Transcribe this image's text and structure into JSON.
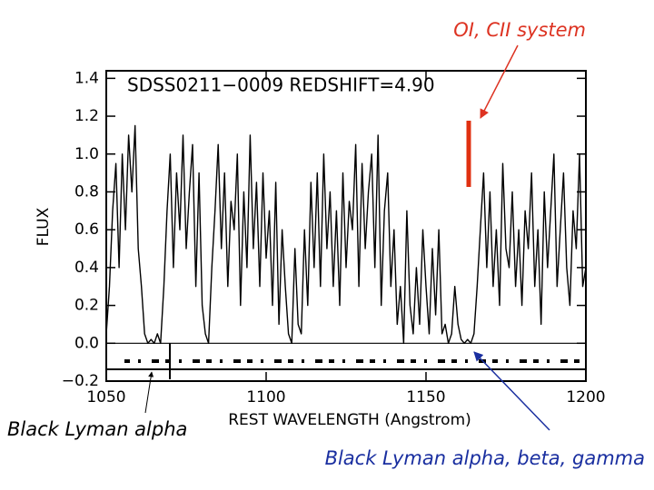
{
  "chart_data": {
    "type": "line",
    "title": "SDSS0211−0009  REDSHIFT=4.90",
    "x_label": "REST WAVELENGTH (Angstrom)",
    "y_label": "FLUX",
    "annotations": [
      "OI, CII system",
      "Black Lyman alpha",
      "Black Lyman alpha, beta, gamma"
    ],
    "xlim": [
      1050,
      1200
    ],
    "ylim": [
      -0.2,
      1.44
    ],
    "xticks": [
      1050,
      1100,
      1150,
      1200
    ],
    "yticks": [
      {
        "value": -0.2,
        "label": "−0.2"
      },
      {
        "value": 0,
        "label": "0.0"
      },
      0.2,
      0.4,
      0.6,
      0.8,
      {
        "value": 1,
        "label": "1.0"
      },
      1.2,
      1.4
    ],
    "reference_lines": [
      0
    ],
    "series": [
      {
        "color": "#000000",
        "x": [
          1050,
          1051,
          1052,
          1053,
          1054,
          1055,
          1056,
          1057,
          1058,
          1059,
          1060,
          1061,
          1062,
          1063,
          1064,
          1065,
          1066,
          1067,
          1068,
          1069,
          1070,
          1071,
          1072,
          1073,
          1074,
          1075,
          1076,
          1077,
          1078,
          1079,
          1080,
          1081,
          1082,
          1083,
          1084,
          1085,
          1086,
          1087,
          1088,
          1089,
          1090,
          1091,
          1092,
          1093,
          1094,
          1095,
          1096,
          1097,
          1098,
          1099,
          1100,
          1101,
          1102,
          1103,
          1104,
          1105,
          1106,
          1107,
          1108,
          1109,
          1110,
          1111,
          1112,
          1113,
          1114,
          1115,
          1116,
          1117,
          1118,
          1119,
          1120,
          1121,
          1122,
          1123,
          1124,
          1125,
          1126,
          1127,
          1128,
          1129,
          1130,
          1131,
          1132,
          1133,
          1134,
          1135,
          1136,
          1137,
          1138,
          1139,
          1140,
          1141,
          1142,
          1143,
          1144,
          1145,
          1146,
          1147,
          1148,
          1149,
          1150,
          1151,
          1152,
          1153,
          1154,
          1155,
          1156,
          1157,
          1158,
          1159,
          1160,
          1161,
          1162,
          1163,
          1164,
          1165,
          1166,
          1167,
          1168,
          1169,
          1170,
          1171,
          1172,
          1173,
          1174,
          1175,
          1176,
          1177,
          1178,
          1179,
          1180,
          1181,
          1182,
          1183,
          1184,
          1185,
          1186,
          1187,
          1188,
          1189,
          1190,
          1191,
          1192,
          1193,
          1194,
          1195,
          1196,
          1197,
          1198,
          1199,
          1200
        ],
        "values": [
          0.05,
          0.3,
          0.7,
          0.95,
          0.4,
          1.0,
          0.6,
          1.1,
          0.8,
          1.15,
          0.5,
          0.3,
          0.05,
          0.0,
          0.02,
          0.0,
          0.05,
          0.0,
          0.3,
          0.7,
          1.0,
          0.4,
          0.9,
          0.6,
          1.1,
          0.5,
          0.8,
          1.05,
          0.3,
          0.9,
          0.2,
          0.05,
          0.0,
          0.4,
          0.7,
          1.05,
          0.5,
          0.9,
          0.3,
          0.75,
          0.6,
          1.0,
          0.2,
          0.8,
          0.4,
          1.1,
          0.5,
          0.85,
          0.3,
          0.9,
          0.45,
          0.7,
          0.2,
          0.85,
          0.1,
          0.6,
          0.3,
          0.05,
          0.0,
          0.5,
          0.1,
          0.05,
          0.6,
          0.2,
          0.85,
          0.4,
          0.9,
          0.3,
          1.0,
          0.5,
          0.8,
          0.3,
          0.7,
          0.2,
          0.9,
          0.4,
          0.75,
          0.6,
          1.05,
          0.3,
          0.95,
          0.5,
          0.8,
          1.0,
          0.4,
          1.1,
          0.2,
          0.7,
          0.9,
          0.3,
          0.6,
          0.1,
          0.3,
          0.0,
          0.7,
          0.2,
          0.05,
          0.4,
          0.1,
          0.6,
          0.3,
          0.05,
          0.5,
          0.15,
          0.6,
          0.05,
          0.1,
          0.0,
          0.05,
          0.3,
          0.1,
          0.02,
          0.0,
          0.02,
          0.0,
          0.05,
          0.3,
          0.6,
          0.9,
          0.4,
          0.8,
          0.3,
          0.6,
          0.2,
          0.95,
          0.5,
          0.4,
          0.8,
          0.3,
          0.6,
          0.2,
          0.7,
          0.5,
          0.9,
          0.3,
          0.6,
          0.1,
          0.8,
          0.4,
          0.7,
          1.0,
          0.3,
          0.6,
          0.9,
          0.4,
          0.2,
          0.7,
          0.5,
          1.0,
          0.3,
          0.4
        ]
      }
    ]
  }
}
